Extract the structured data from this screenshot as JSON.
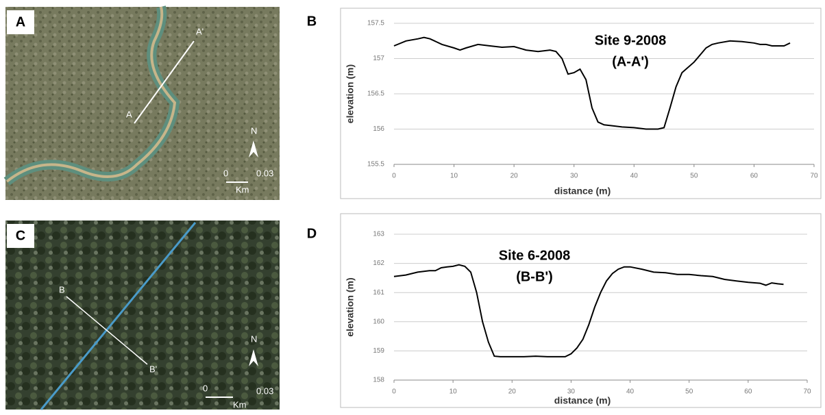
{
  "panels": [
    {
      "label": "A",
      "map_labels": [
        "A'",
        "A",
        "N",
        "0",
        "0.03",
        "Km"
      ]
    },
    {
      "label": "B"
    },
    {
      "label": "C",
      "map_labels": [
        "B",
        "B'",
        "N",
        "0",
        "0.03",
        "Km"
      ]
    },
    {
      "label": "D"
    }
  ],
  "chart_data": [
    {
      "type": "line",
      "title": "Site 9-2008",
      "subtitle": "(A-A')",
      "x_label": "distance (m)",
      "y_label": "elevation (m)",
      "color": "#000000",
      "grid": true,
      "x": [
        0,
        2,
        4,
        5,
        6,
        8,
        10,
        11,
        12,
        14,
        16,
        18,
        20,
        22,
        24,
        26,
        27,
        28,
        29,
        30,
        31,
        32,
        33,
        34,
        35,
        36,
        38,
        40,
        42,
        43,
        44,
        45,
        46,
        47,
        48,
        50,
        52,
        53,
        54,
        56,
        58,
        60,
        61,
        62,
        63,
        64,
        65,
        66
      ],
      "values": [
        157.18,
        157.25,
        157.28,
        157.3,
        157.28,
        157.2,
        157.15,
        157.12,
        157.15,
        157.2,
        157.18,
        157.16,
        157.17,
        157.12,
        157.1,
        157.12,
        157.1,
        157.0,
        156.78,
        156.8,
        156.85,
        156.7,
        156.3,
        156.1,
        156.06,
        156.05,
        156.03,
        156.02,
        156.0,
        156.0,
        156.0,
        156.02,
        156.3,
        156.6,
        156.8,
        156.95,
        157.15,
        157.2,
        157.22,
        157.25,
        157.24,
        157.22,
        157.2,
        157.2,
        157.18,
        157.18,
        157.18,
        157.22
      ],
      "xlim": [
        0,
        70
      ],
      "xticks": [
        0,
        10,
        20,
        30,
        40,
        50,
        60,
        70
      ],
      "ylim": [
        155.5,
        157.5
      ],
      "yticks": [
        155.5,
        156,
        156.5,
        157,
        157.5
      ]
    },
    {
      "type": "line",
      "title": "Site 6-2008",
      "subtitle": "(B-B')",
      "x_label": "distance (m)",
      "y_label": "elevation (m)",
      "color": "#000000",
      "grid": true,
      "x": [
        0,
        2,
        4,
        6,
        7,
        8,
        9,
        10,
        11,
        12,
        13,
        14,
        15,
        16,
        17,
        18,
        20,
        22,
        24,
        26,
        28,
        29,
        30,
        31,
        32,
        33,
        34,
        35,
        36,
        37,
        38,
        39,
        40,
        42,
        44,
        46,
        48,
        50,
        52,
        54,
        55,
        56,
        58,
        60,
        62,
        63,
        64,
        65,
        66
      ],
      "values": [
        161.55,
        161.6,
        161.7,
        161.75,
        161.75,
        161.85,
        161.88,
        161.9,
        161.95,
        161.9,
        161.7,
        161.0,
        160.0,
        159.3,
        158.82,
        158.8,
        158.8,
        158.8,
        158.82,
        158.8,
        158.8,
        158.8,
        158.9,
        159.1,
        159.4,
        159.9,
        160.5,
        161.0,
        161.4,
        161.65,
        161.8,
        161.88,
        161.88,
        161.8,
        161.7,
        161.68,
        161.62,
        161.62,
        161.58,
        161.55,
        161.5,
        161.45,
        161.4,
        161.35,
        161.32,
        161.25,
        161.33,
        161.3,
        161.28
      ],
      "xlim": [
        0,
        70
      ],
      "xticks": [
        0,
        10,
        20,
        30,
        40,
        50,
        60,
        70
      ],
      "ylim": [
        158,
        163
      ],
      "yticks": [
        158,
        159,
        160,
        161,
        162,
        163
      ]
    }
  ]
}
